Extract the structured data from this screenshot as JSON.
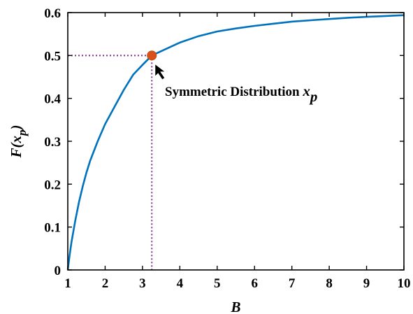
{
  "chart_data": {
    "type": "line",
    "title": "",
    "xlabel": "B",
    "ylabel": "F(x_p)",
    "xlim": [
      1,
      10
    ],
    "ylim": [
      0,
      0.6
    ],
    "xticks": [
      "1",
      "2",
      "3",
      "4",
      "5",
      "6",
      "7",
      "8",
      "9",
      "10"
    ],
    "yticks": [
      "0",
      "0.1",
      "0.2",
      "0.3",
      "0.4",
      "0.5",
      "0.6"
    ],
    "grid": false,
    "series": [
      {
        "color": "#0072BD",
        "x": [
          1.0,
          1.05,
          1.1,
          1.2,
          1.3,
          1.4,
          1.5,
          1.6,
          1.8,
          2.0,
          2.25,
          2.5,
          2.75,
          3.0,
          3.25,
          3.5,
          4.0,
          4.5,
          5.0,
          5.5,
          6.0,
          6.5,
          7.0,
          7.5,
          8.0,
          8.5,
          9.0,
          9.5,
          10.0
        ],
        "y": [
          0.0,
          0.035,
          0.065,
          0.115,
          0.158,
          0.195,
          0.227,
          0.255,
          0.3,
          0.34,
          0.38,
          0.42,
          0.455,
          0.478,
          0.5,
          0.51,
          0.53,
          0.545,
          0.556,
          0.563,
          0.569,
          0.574,
          0.579,
          0.582,
          0.585,
          0.588,
          0.59,
          0.592,
          0.594
        ]
      }
    ],
    "highlight_point": {
      "x": 3.25,
      "y": 0.5,
      "color": "#D95319"
    },
    "guide_lines": {
      "x": 3.25,
      "y": 0.5,
      "color": "#7E2F8E",
      "style": "dotted"
    },
    "annotation": {
      "text": "Symmetric Distribution ",
      "var": "x",
      "sub": "p"
    }
  }
}
